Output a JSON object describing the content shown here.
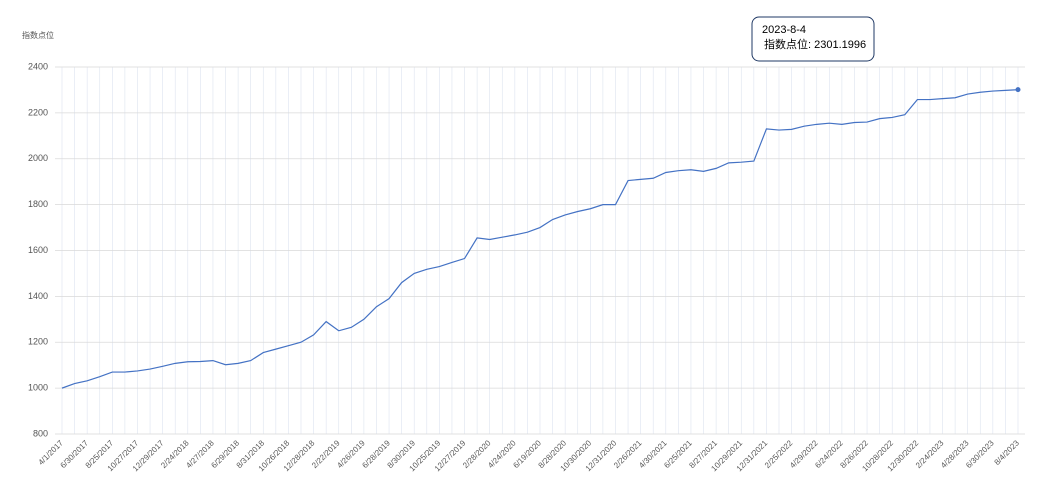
{
  "chart_data": {
    "type": "line",
    "y_label": "指数点位",
    "categories": [
      "4/1/2017",
      null,
      "6/30/2017",
      null,
      "8/25/2017",
      null,
      "10/27/2017",
      null,
      "12/29/2017",
      null,
      "2/24/2018",
      null,
      "4/27/2018",
      null,
      "6/29/2018",
      null,
      "8/31/2018",
      null,
      "10/26/2018",
      null,
      "12/28/2018",
      null,
      "2/22/2019",
      null,
      "4/26/2019",
      null,
      "6/28/2019",
      null,
      "8/30/2019",
      null,
      "10/25/2019",
      null,
      "12/27/2019",
      null,
      "2/28/2020",
      null,
      "4/24/2020",
      null,
      "6/19/2020",
      null,
      "8/28/2020",
      null,
      "10/30/2020",
      null,
      "12/31/2020",
      null,
      "2/26/2021",
      null,
      "4/30/2021",
      null,
      "6/25/2021",
      null,
      "8/27/2021",
      null,
      "10/29/2021",
      null,
      "12/31/2021",
      null,
      "2/25/2022",
      null,
      "4/29/2022",
      null,
      "6/24/2022",
      null,
      "8/26/2022",
      null,
      "10/28/2022",
      null,
      "12/30/2022",
      null,
      "2/24/2023",
      null,
      "4/28/2023",
      null,
      "6/30/2023",
      null,
      "8/4/2023"
    ],
    "series": [
      {
        "name": "指数点位",
        "color": "#4472c4",
        "values": [
          1000,
          1020,
          1032,
          1050,
          1070,
          1070,
          1075,
          1083,
          1095,
          1108,
          1115,
          1116,
          1120,
          1102,
          1108,
          1120,
          1155,
          1170,
          1185,
          1200,
          1232,
          1290,
          1250,
          1265,
          1300,
          1355,
          1390,
          1460,
          1500,
          1518,
          1530,
          1548,
          1565,
          1655,
          1648,
          1658,
          1668,
          1680,
          1700,
          1735,
          1755,
          1770,
          1782,
          1800,
          1800,
          1905,
          1910,
          1915,
          1940,
          1948,
          1952,
          1945,
          1958,
          1982,
          1985,
          1990,
          2130,
          2125,
          2128,
          2142,
          2150,
          2155,
          2150,
          2158,
          2160,
          2175,
          2180,
          2192,
          2258,
          2258,
          2262,
          2266,
          2282,
          2290,
          2295,
          2298,
          2301.1996
        ]
      }
    ],
    "ylim": [
      800,
      2400
    ],
    "yticks": [
      800,
      1000,
      1200,
      1400,
      1600,
      1800,
      2000,
      2200,
      2400
    ],
    "grid": true,
    "tooltip": {
      "date": "2023-8-4",
      "text": "指数点位: 2301.1996"
    }
  }
}
